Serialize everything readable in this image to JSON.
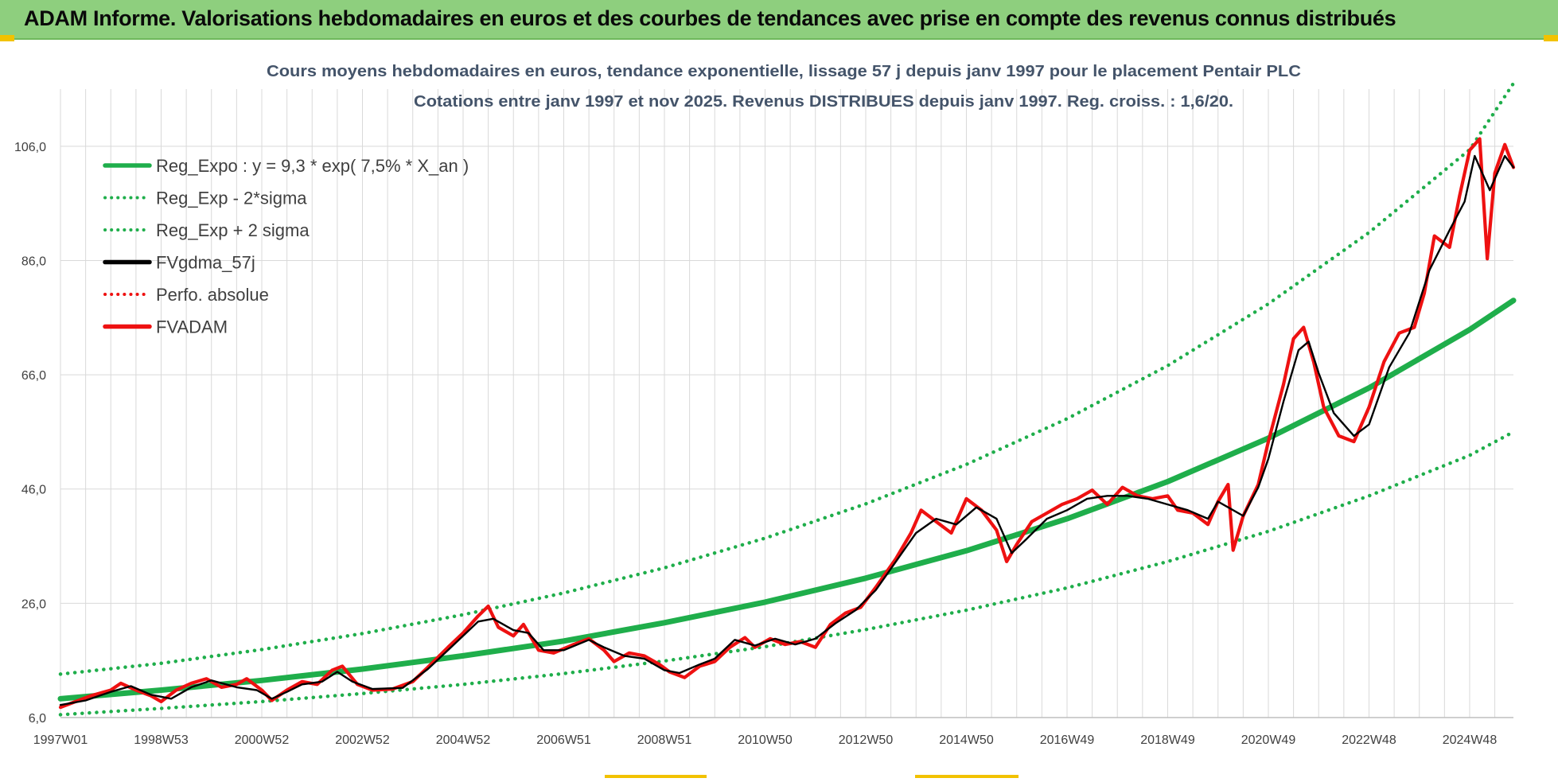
{
  "banner": {
    "title": "ADAM Informe. Valorisations hebdomadaires en euros et des courbes de tendances avec prise en compte des revenus connus distribués"
  },
  "colors": {
    "banner_bg": "#8ecf7e",
    "accent_yellow": "#f2c200",
    "trend_green": "#1fae4b",
    "price_red": "#ee1111",
    "smooth_black": "#000000",
    "grid": "#d9d9d9",
    "title_text": "#44546a"
  },
  "chart_data": {
    "type": "line",
    "title": "Cours moyens hebdomadaires en euros, tendance exponentielle, lissage 57 j depuis janv 1997  pour le placement Pentair PLC",
    "subtitle": "Cotations entre janv 1997 et nov 2025. Revenus  DISTRIBUES depuis janv 1997.  Reg. croiss. : 1,6/20.",
    "xlabel": "",
    "ylabel": "",
    "x_range": [
      1997.0,
      2025.87
    ],
    "ylim": [
      6,
      116
    ],
    "y_ticks": [
      6,
      26,
      46,
      66,
      86,
      106
    ],
    "y_tick_labels": [
      "6,0",
      "26,0",
      "46,0",
      "66,0",
      "86,0",
      "106,0"
    ],
    "x_ticks": [
      {
        "x": 1997.0,
        "label": "1997W01"
      },
      {
        "x": 1999.0,
        "label": "1998W53"
      },
      {
        "x": 2001.0,
        "label": "2000W52"
      },
      {
        "x": 2003.0,
        "label": "2002W52"
      },
      {
        "x": 2005.0,
        "label": "2004W52"
      },
      {
        "x": 2007.0,
        "label": "2006W51"
      },
      {
        "x": 2009.0,
        "label": "2008W51"
      },
      {
        "x": 2011.0,
        "label": "2010W50"
      },
      {
        "x": 2013.0,
        "label": "2012W50"
      },
      {
        "x": 2015.0,
        "label": "2014W50"
      },
      {
        "x": 2017.0,
        "label": "2016W49"
      },
      {
        "x": 2019.0,
        "label": "2018W49"
      },
      {
        "x": 2021.0,
        "label": "2020W49"
      },
      {
        "x": 2023.0,
        "label": "2022W48"
      },
      {
        "x": 2025.0,
        "label": "2024W48"
      }
    ],
    "grid": true,
    "legend_position": "top-left",
    "series": [
      {
        "name": "Reg_Expo : y = 9,3 * exp( 7,5% *  X_an )",
        "style": "solid",
        "color": "#1fae4b",
        "points": [
          [
            1997.0,
            9.3
          ],
          [
            1999.0,
            10.8
          ],
          [
            2001.0,
            12.5
          ],
          [
            2003.0,
            14.5
          ],
          [
            2005.0,
            16.8
          ],
          [
            2007.0,
            19.4
          ],
          [
            2009.0,
            22.6
          ],
          [
            2011.0,
            26.2
          ],
          [
            2013.0,
            30.4
          ],
          [
            2015.0,
            35.2
          ],
          [
            2017.0,
            40.8
          ],
          [
            2019.0,
            47.3
          ],
          [
            2021.0,
            54.9
          ],
          [
            2023.0,
            63.7
          ],
          [
            2025.0,
            73.9
          ],
          [
            2025.87,
            79.0
          ]
        ]
      },
      {
        "name": "Reg_Exp - 2*sigma",
        "style": "dotted",
        "color": "#1fae4b",
        "points": [
          [
            1997.0,
            6.5
          ],
          [
            1999.0,
            7.6
          ],
          [
            2001.0,
            8.8
          ],
          [
            2003.0,
            10.2
          ],
          [
            2005.0,
            11.8
          ],
          [
            2007.0,
            13.7
          ],
          [
            2009.0,
            15.9
          ],
          [
            2011.0,
            18.4
          ],
          [
            2013.0,
            21.4
          ],
          [
            2015.0,
            24.8
          ],
          [
            2017.0,
            28.7
          ],
          [
            2019.0,
            33.3
          ],
          [
            2021.0,
            38.6
          ],
          [
            2023.0,
            44.8
          ],
          [
            2025.0,
            51.9
          ],
          [
            2025.87,
            56.0
          ]
        ]
      },
      {
        "name": "Reg_Exp + 2 sigma",
        "style": "dotted",
        "color": "#1fae4b",
        "points": [
          [
            1997.0,
            13.6
          ],
          [
            1999.0,
            15.5
          ],
          [
            2001.0,
            17.9
          ],
          [
            2003.0,
            20.7
          ],
          [
            2005.0,
            24.0
          ],
          [
            2007.0,
            27.8
          ],
          [
            2009.0,
            32.2
          ],
          [
            2011.0,
            37.4
          ],
          [
            2013.0,
            43.4
          ],
          [
            2015.0,
            50.3
          ],
          [
            2017.0,
            58.3
          ],
          [
            2019.0,
            67.6
          ],
          [
            2021.0,
            78.4
          ],
          [
            2023.0,
            90.9
          ],
          [
            2025.0,
            105.4
          ],
          [
            2025.87,
            117.0
          ]
        ]
      },
      {
        "name": "FVgdma_57j",
        "style": "solid",
        "color": "#000000",
        "points": [
          [
            1997.0,
            8.2
          ],
          [
            1997.5,
            9.0
          ],
          [
            1998.0,
            10.5
          ],
          [
            1998.4,
            11.5
          ],
          [
            1998.8,
            10.0
          ],
          [
            1999.2,
            9.3
          ],
          [
            1999.6,
            11.3
          ],
          [
            2000.0,
            12.5
          ],
          [
            2000.5,
            11.3
          ],
          [
            2000.9,
            10.8
          ],
          [
            2001.2,
            9.3
          ],
          [
            2001.5,
            10.5
          ],
          [
            2001.8,
            11.8
          ],
          [
            2002.2,
            12.3
          ],
          [
            2002.5,
            14.0
          ],
          [
            2002.8,
            12.3
          ],
          [
            2003.2,
            11.0
          ],
          [
            2003.8,
            11.2
          ],
          [
            2004.3,
            14.5
          ],
          [
            2004.7,
            17.8
          ],
          [
            2005.0,
            20.3
          ],
          [
            2005.3,
            22.8
          ],
          [
            2005.6,
            23.3
          ],
          [
            2006.0,
            21.3
          ],
          [
            2006.3,
            20.8
          ],
          [
            2006.6,
            17.8
          ],
          [
            2007.0,
            17.8
          ],
          [
            2007.5,
            19.6
          ],
          [
            2007.8,
            18.3
          ],
          [
            2008.2,
            16.8
          ],
          [
            2008.6,
            16.3
          ],
          [
            2009.0,
            14.3
          ],
          [
            2009.3,
            13.8
          ],
          [
            2009.7,
            15.3
          ],
          [
            2010.0,
            16.3
          ],
          [
            2010.4,
            19.6
          ],
          [
            2010.8,
            18.6
          ],
          [
            2011.2,
            19.8
          ],
          [
            2011.6,
            18.8
          ],
          [
            2012.0,
            19.8
          ],
          [
            2012.4,
            22.5
          ],
          [
            2012.8,
            24.8
          ],
          [
            2013.2,
            28.3
          ],
          [
            2013.6,
            33.3
          ],
          [
            2014.0,
            38.3
          ],
          [
            2014.4,
            40.8
          ],
          [
            2014.8,
            39.8
          ],
          [
            2015.2,
            42.8
          ],
          [
            2015.6,
            40.8
          ],
          [
            2015.9,
            34.8
          ],
          [
            2016.2,
            37.3
          ],
          [
            2016.6,
            40.8
          ],
          [
            2017.0,
            42.3
          ],
          [
            2017.4,
            44.3
          ],
          [
            2017.8,
            44.8
          ],
          [
            2018.2,
            44.8
          ],
          [
            2018.6,
            44.3
          ],
          [
            2019.0,
            43.3
          ],
          [
            2019.4,
            42.3
          ],
          [
            2019.8,
            40.8
          ],
          [
            2020.0,
            43.8
          ],
          [
            2020.2,
            42.8
          ],
          [
            2020.5,
            41.3
          ],
          [
            2020.8,
            46.3
          ],
          [
            2021.0,
            51.3
          ],
          [
            2021.3,
            61.3
          ],
          [
            2021.6,
            70.3
          ],
          [
            2021.8,
            71.8
          ],
          [
            2022.0,
            66.3
          ],
          [
            2022.3,
            59.3
          ],
          [
            2022.7,
            55.3
          ],
          [
            2023.0,
            57.3
          ],
          [
            2023.4,
            67.3
          ],
          [
            2023.8,
            73.3
          ],
          [
            2024.2,
            84.3
          ],
          [
            2024.6,
            91.3
          ],
          [
            2024.9,
            96.3
          ],
          [
            2025.1,
            104.3
          ],
          [
            2025.4,
            98.3
          ],
          [
            2025.7,
            104.3
          ],
          [
            2025.87,
            102.3
          ]
        ]
      },
      {
        "name": "Perfo. absolue",
        "style": "dotted",
        "color": "#ee1111",
        "points": []
      },
      {
        "name": "FVADAM",
        "style": "solid",
        "color": "#ee1111",
        "points": [
          [
            1997.0,
            7.8
          ],
          [
            1997.3,
            8.8
          ],
          [
            1997.6,
            9.8
          ],
          [
            1998.0,
            10.8
          ],
          [
            1998.2,
            12.0
          ],
          [
            1998.5,
            10.8
          ],
          [
            1998.8,
            9.8
          ],
          [
            1999.0,
            8.8
          ],
          [
            1999.3,
            10.8
          ],
          [
            1999.6,
            12.0
          ],
          [
            1999.9,
            12.8
          ],
          [
            2000.2,
            11.3
          ],
          [
            2000.5,
            11.8
          ],
          [
            2000.7,
            12.8
          ],
          [
            2001.0,
            10.8
          ],
          [
            2001.2,
            9.0
          ],
          [
            2001.5,
            10.8
          ],
          [
            2001.8,
            12.3
          ],
          [
            2002.1,
            11.8
          ],
          [
            2002.4,
            14.3
          ],
          [
            2002.6,
            15.0
          ],
          [
            2002.9,
            11.8
          ],
          [
            2003.2,
            10.8
          ],
          [
            2003.6,
            11.0
          ],
          [
            2004.0,
            12.3
          ],
          [
            2004.3,
            14.8
          ],
          [
            2004.7,
            18.3
          ],
          [
            2005.0,
            20.8
          ],
          [
            2005.3,
            23.8
          ],
          [
            2005.5,
            25.5
          ],
          [
            2005.7,
            21.8
          ],
          [
            2006.0,
            20.3
          ],
          [
            2006.2,
            22.3
          ],
          [
            2006.5,
            17.8
          ],
          [
            2006.8,
            17.3
          ],
          [
            2007.2,
            18.8
          ],
          [
            2007.5,
            19.8
          ],
          [
            2007.8,
            17.8
          ],
          [
            2008.0,
            15.8
          ],
          [
            2008.3,
            17.3
          ],
          [
            2008.6,
            16.8
          ],
          [
            2008.9,
            15.3
          ],
          [
            2009.1,
            14.0
          ],
          [
            2009.4,
            13.0
          ],
          [
            2009.7,
            15.0
          ],
          [
            2010.0,
            15.8
          ],
          [
            2010.3,
            18.3
          ],
          [
            2010.6,
            20.0
          ],
          [
            2010.8,
            18.3
          ],
          [
            2011.1,
            19.8
          ],
          [
            2011.4,
            18.8
          ],
          [
            2011.7,
            19.3
          ],
          [
            2012.0,
            18.3
          ],
          [
            2012.3,
            22.3
          ],
          [
            2012.6,
            24.3
          ],
          [
            2012.9,
            25.3
          ],
          [
            2013.2,
            28.8
          ],
          [
            2013.6,
            33.8
          ],
          [
            2013.9,
            38.3
          ],
          [
            2014.1,
            42.3
          ],
          [
            2014.4,
            40.3
          ],
          [
            2014.7,
            38.3
          ],
          [
            2015.0,
            44.3
          ],
          [
            2015.3,
            42.3
          ],
          [
            2015.6,
            38.8
          ],
          [
            2015.8,
            33.3
          ],
          [
            2016.0,
            36.3
          ],
          [
            2016.3,
            40.3
          ],
          [
            2016.6,
            41.8
          ],
          [
            2016.9,
            43.3
          ],
          [
            2017.2,
            44.3
          ],
          [
            2017.5,
            45.8
          ],
          [
            2017.8,
            43.3
          ],
          [
            2018.1,
            46.3
          ],
          [
            2018.4,
            44.8
          ],
          [
            2018.7,
            44.3
          ],
          [
            2019.0,
            44.8
          ],
          [
            2019.2,
            42.3
          ],
          [
            2019.5,
            41.8
          ],
          [
            2019.8,
            39.8
          ],
          [
            2020.0,
            43.8
          ],
          [
            2020.2,
            46.8
          ],
          [
            2020.3,
            35.3
          ],
          [
            2020.5,
            41.3
          ],
          [
            2020.8,
            46.8
          ],
          [
            2021.0,
            54.3
          ],
          [
            2021.3,
            64.3
          ],
          [
            2021.5,
            72.3
          ],
          [
            2021.7,
            74.3
          ],
          [
            2021.9,
            68.3
          ],
          [
            2022.1,
            60.3
          ],
          [
            2022.4,
            55.3
          ],
          [
            2022.7,
            54.3
          ],
          [
            2023.0,
            60.3
          ],
          [
            2023.3,
            68.3
          ],
          [
            2023.6,
            73.3
          ],
          [
            2023.9,
            74.3
          ],
          [
            2024.1,
            80.3
          ],
          [
            2024.3,
            90.3
          ],
          [
            2024.6,
            88.3
          ],
          [
            2024.8,
            97.3
          ],
          [
            2025.0,
            105.3
          ],
          [
            2025.2,
            107.3
          ],
          [
            2025.35,
            86.3
          ],
          [
            2025.5,
            101.3
          ],
          [
            2025.7,
            106.3
          ],
          [
            2025.87,
            102.3
          ]
        ]
      }
    ]
  }
}
